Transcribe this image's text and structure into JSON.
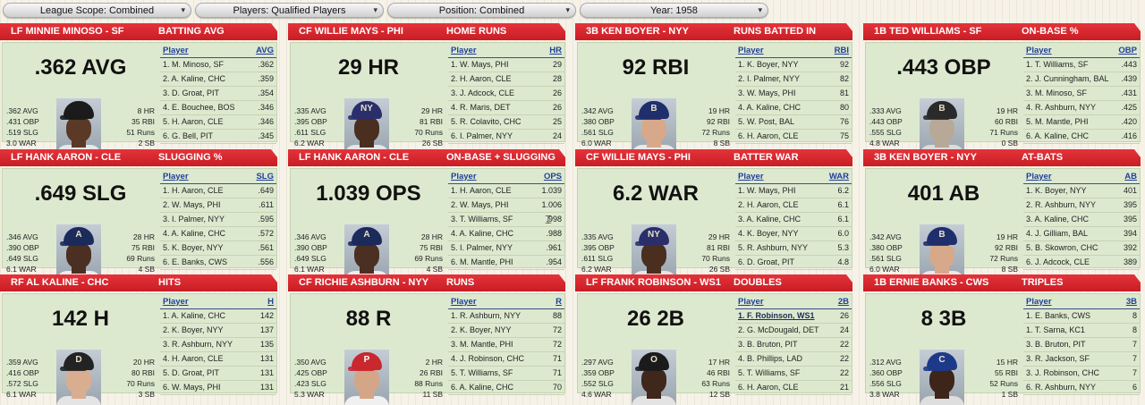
{
  "toolbar": {
    "scope": "League Scope: Combined",
    "players": "Players: Qualified Players",
    "position": "Position: Combined",
    "year": "Year: 1958",
    "caret": "▾"
  },
  "cards": [
    {
      "pos": "LF MINNIE MINOSO - SF",
      "cat": "BATTING AVG",
      "big": ".362 AVG",
      "l": [
        ".362 AVG",
        ".431 OBP",
        ".519 SLG",
        "3.0 WAR"
      ],
      "r": [
        "8 HR",
        "35 RBI",
        "51 Runs",
        "2 SB"
      ],
      "col": "AVG",
      "rows": [
        [
          "1. M. Minoso, SF",
          ".362"
        ],
        [
          "2. A. Kaline, CHC",
          ".359"
        ],
        [
          "3. D. Groat, PIT",
          ".354"
        ],
        [
          "4. E. Bouchee, BOS",
          ".346"
        ],
        [
          "5. H. Aaron, CLE",
          ".346"
        ],
        [
          "6. G. Bell, PIT",
          ".345"
        ]
      ],
      "cap": "#1b1b1b",
      "face": "#5a3a26",
      "shirt": "#e8e8e8",
      "logo": ""
    },
    {
      "pos": "CF WILLIE MAYS - PHI",
      "cat": "HOME RUNS",
      "big": "29 HR",
      "l": [
        ".335 AVG",
        ".395 OBP",
        ".611 SLG",
        "6.2 WAR"
      ],
      "r": [
        "29 HR",
        "81 RBI",
        "70 Runs",
        "26 SB"
      ],
      "col": "HR",
      "rows": [
        [
          "1. W. Mays, PHI",
          "29"
        ],
        [
          "2. H. Aaron, CLE",
          "28"
        ],
        [
          "3. J. Adcock, CLE",
          "26"
        ],
        [
          "4. R. Maris, DET",
          "26"
        ],
        [
          "5. R. Colavito, CHC",
          "25"
        ],
        [
          "6. I. Palmer, NYY",
          "24"
        ]
      ],
      "cap": "#2a2f6a",
      "face": "#4a2e20",
      "shirt": "#e6e6e6",
      "logo": "NY"
    },
    {
      "pos": "3B KEN BOYER - NYY",
      "cat": "RUNS BATTED IN",
      "big": "92 RBI",
      "l": [
        ".342 AVG",
        ".380 OBP",
        ".561 SLG",
        "6.0 WAR"
      ],
      "r": [
        "19 HR",
        "92 RBI",
        "72 Runs",
        "8 SB"
      ],
      "col": "RBI",
      "rows": [
        [
          "1. K. Boyer, NYY",
          "92"
        ],
        [
          "2. I. Palmer, NYY",
          "82"
        ],
        [
          "3. W. Mays, PHI",
          "81"
        ],
        [
          "4. A. Kaline, CHC",
          "80"
        ],
        [
          "5. W. Post, BAL",
          "76"
        ],
        [
          "6. H. Aaron, CLE",
          "75"
        ]
      ],
      "cap": "#1f2f6b",
      "face": "#d7a98a",
      "shirt": "#e9e9e9",
      "logo": "B"
    },
    {
      "pos": "1B TED WILLIAMS - SF",
      "cat": "ON-BASE %",
      "big": ".443 OBP",
      "l": [
        ".333 AVG",
        ".443 OBP",
        ".555 SLG",
        "4.8 WAR"
      ],
      "r": [
        "19 HR",
        "60 RBI",
        "71 Runs",
        "0 SB"
      ],
      "col": "OBP",
      "rows": [
        [
          "1. T. Williams, SF",
          ".443"
        ],
        [
          "2. J. Cunningham, BAL",
          ".439"
        ],
        [
          "3. M. Minoso, SF",
          ".431"
        ],
        [
          "4. R. Ashburn, NYY",
          ".425"
        ],
        [
          "5. M. Mantle, PHI",
          ".420"
        ],
        [
          "6. A. Kaline, CHC",
          ".416"
        ]
      ],
      "cap": "#2a2a2a",
      "face": "#b8a898",
      "shirt": "#dcdcdc",
      "logo": "B"
    },
    {
      "pos": "LF HANK AARON - CLE",
      "cat": "SLUGGING %",
      "big": ".649 SLG",
      "l": [
        ".346 AVG",
        ".390 OBP",
        ".649 SLG",
        "6.1 WAR"
      ],
      "r": [
        "28 HR",
        "75 RBI",
        "69 Runs",
        "4 SB"
      ],
      "col": "SLG",
      "rows": [
        [
          "1. H. Aaron, CLE",
          ".649"
        ],
        [
          "2. W. Mays, PHI",
          ".611"
        ],
        [
          "3. I. Palmer, NYY",
          ".595"
        ],
        [
          "4. A. Kaline, CHC",
          ".572"
        ],
        [
          "5. K. Boyer, NYY",
          ".561"
        ],
        [
          "6. E. Banks, CWS",
          ".556"
        ]
      ],
      "cap": "#1c2a5c",
      "face": "#4b2f22",
      "shirt": "#ededed",
      "logo": "A"
    },
    {
      "pos": "LF HANK AARON - CLE",
      "cat": "ON-BASE + SLUGGING",
      "big": "1.039 OPS",
      "l": [
        ".346 AVG",
        ".390 OBP",
        ".649 SLG",
        "6.1 WAR"
      ],
      "r": [
        "28 HR",
        "75 RBI",
        "69 Runs",
        "4 SB"
      ],
      "col": "OPS",
      "rows": [
        [
          "1. H. Aaron, CLE",
          "1.039"
        ],
        [
          "2. W. Mays, PHI",
          "1.006"
        ],
        [
          "3. T. Williams, SF",
          ".998"
        ],
        [
          "4. A. Kaline, CHC",
          ".988"
        ],
        [
          "5. I. Palmer, NYY",
          ".961"
        ],
        [
          "6. M. Mantle, PHI",
          ".954"
        ]
      ],
      "cap": "#1c2a5c",
      "face": "#4b2f22",
      "shirt": "#ededed",
      "logo": "A"
    },
    {
      "pos": "CF WILLIE MAYS - PHI",
      "cat": "BATTER WAR",
      "big": "6.2 WAR",
      "l": [
        ".335 AVG",
        ".395 OBP",
        ".611 SLG",
        "6.2 WAR"
      ],
      "r": [
        "29 HR",
        "81 RBI",
        "70 Runs",
        "26 SB"
      ],
      "col": "WAR",
      "rows": [
        [
          "1. W. Mays, PHI",
          "6.2"
        ],
        [
          "2. H. Aaron, CLE",
          "6.1"
        ],
        [
          "3. A. Kaline, CHC",
          "6.1"
        ],
        [
          "4. K. Boyer, NYY",
          "6.0"
        ],
        [
          "5. R. Ashburn, NYY",
          "5.3"
        ],
        [
          "6. D. Groat, PIT",
          "4.8"
        ]
      ],
      "cap": "#2a2f6a",
      "face": "#4a2e20",
      "shirt": "#e6e6e6",
      "logo": "NY"
    },
    {
      "pos": "3B KEN BOYER - NYY",
      "cat": "AT-BATS",
      "big": "401 AB",
      "l": [
        ".342 AVG",
        ".380 OBP",
        ".561 SLG",
        "6.0 WAR"
      ],
      "r": [
        "19 HR",
        "92 RBI",
        "72 Runs",
        "8 SB"
      ],
      "col": "AB",
      "rows": [
        [
          "1. K. Boyer, NYY",
          "401"
        ],
        [
          "2. R. Ashburn, NYY",
          "395"
        ],
        [
          "3. A. Kaline, CHC",
          "395"
        ],
        [
          "4. J. Gilliam, BAL",
          "394"
        ],
        [
          "5. B. Skowron, CHC",
          "392"
        ],
        [
          "6. J. Adcock, CLE",
          "389"
        ]
      ],
      "cap": "#1f2f6b",
      "face": "#d7a98a",
      "shirt": "#e9e9e9",
      "logo": "B"
    },
    {
      "pos": "RF AL KALINE - CHC",
      "cat": "HITS",
      "big": "142 H",
      "l": [
        ".359 AVG",
        ".416 OBP",
        ".572 SLG",
        "6.1 WAR"
      ],
      "r": [
        "20 HR",
        "80 RBI",
        "70 Runs",
        "3 SB"
      ],
      "col": "H",
      "rows": [
        [
          "1. A. Kaline, CHC",
          "142"
        ],
        [
          "2. K. Boyer, NYY",
          "137"
        ],
        [
          "3. R. Ashburn, NYY",
          "135"
        ],
        [
          "4. H. Aaron, CLE",
          "131"
        ],
        [
          "5. D. Groat, PIT",
          "131"
        ],
        [
          "6. W. Mays, PHI",
          "131"
        ]
      ],
      "cap": "#232323",
      "face": "#d9ae90",
      "shirt": "#e4e4e4",
      "logo": "D"
    },
    {
      "pos": "CF RICHIE ASHBURN - NYY",
      "cat": "RUNS",
      "big": "88 R",
      "l": [
        ".350 AVG",
        ".425 OBP",
        ".423 SLG",
        "5.3 WAR"
      ],
      "r": [
        "2 HR",
        "26 RBI",
        "88 Runs",
        "11 SB"
      ],
      "col": "R",
      "rows": [
        [
          "1. R. Ashburn, NYY",
          "88"
        ],
        [
          "2. K. Boyer, NYY",
          "72"
        ],
        [
          "3. M. Mantle, PHI",
          "72"
        ],
        [
          "4. J. Robinson, CHC",
          "71"
        ],
        [
          "5. T. Williams, SF",
          "71"
        ],
        [
          "6. A. Kaline, CHC",
          "70"
        ]
      ],
      "cap": "#c8282e",
      "face": "#d5a587",
      "shirt": "#f0f0f0",
      "logo": "P"
    },
    {
      "pos": "LF FRANK ROBINSON - WS1",
      "cat": "DOUBLES",
      "big": "26 2B",
      "l": [
        ".297 AVG",
        ".359 OBP",
        ".552 SLG",
        "4.6 WAR"
      ],
      "r": [
        "17 HR",
        "46 RBI",
        "63 Runs",
        "12 SB"
      ],
      "col": "2B",
      "rows": [
        [
          "1. F. Robinson, WS1",
          "26"
        ],
        [
          "2. G. McDougald, DET",
          "24"
        ],
        [
          "3. B. Bruton, PIT",
          "22"
        ],
        [
          "4. B. Phillips, LAD",
          "22"
        ],
        [
          "5. T. Williams, SF",
          "22"
        ],
        [
          "6. H. Aaron, CLE",
          "21"
        ]
      ],
      "cap": "#1b1b1b",
      "face": "#3f271c",
      "shirt": "#e3e3e3",
      "logo": "O"
    },
    {
      "pos": "1B ERNIE BANKS - CWS",
      "cat": "TRIPLES",
      "big": "8 3B",
      "l": [
        ".312 AVG",
        ".360 OBP",
        ".556 SLG",
        "3.8 WAR"
      ],
      "r": [
        "15 HR",
        "55 RBI",
        "52 Runs",
        "1 SB"
      ],
      "col": "3B",
      "rows": [
        [
          "1. E. Banks, CWS",
          "8"
        ],
        [
          "1. T. Sarna, KC1",
          "8"
        ],
        [
          "3. B. Bruton, PIT",
          "7"
        ],
        [
          "3. R. Jackson, SF",
          "7"
        ],
        [
          "3. J. Robinson, CHC",
          "7"
        ],
        [
          "6. R. Ashburn, NYY",
          "6"
        ]
      ],
      "cap": "#1d3a8a",
      "face": "#3d2519",
      "shirt": "#dedede",
      "logo": "C"
    }
  ]
}
